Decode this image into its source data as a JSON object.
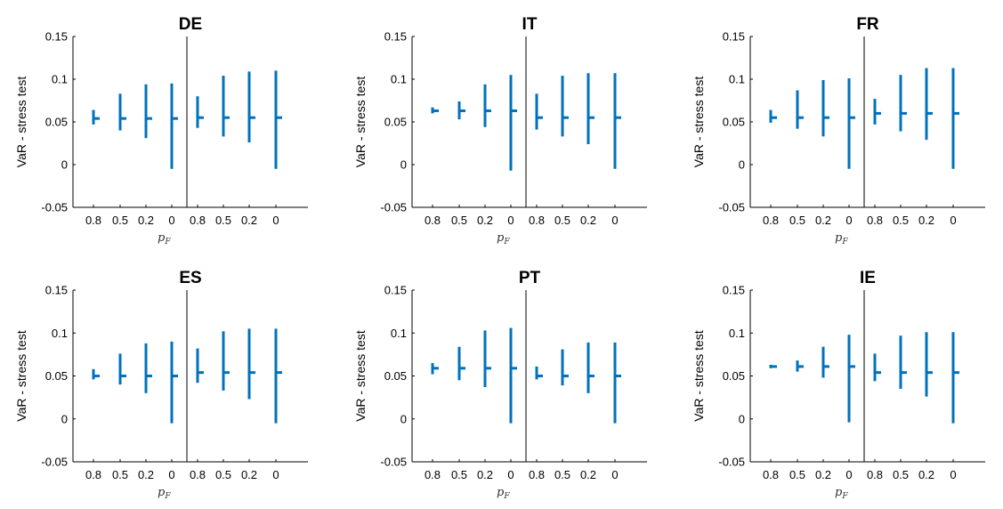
{
  "colors": {
    "series": "#0072BD",
    "axis": "#000000",
    "background": "#ffffff"
  },
  "chart_data": [
    {
      "type": "errorbar",
      "title": "DE",
      "ylabel": "VaR - stress test",
      "xlabel": "p_F",
      "ylim": [
        -0.05,
        0.15
      ],
      "yticks": [
        "0.15",
        "0.1",
        "0.05",
        "0",
        "-0.05"
      ],
      "categories": [
        "0.8",
        "0.5",
        "0.2",
        "0",
        "0.8",
        "0.5",
        "0.2",
        "0"
      ],
      "center": [
        0.054,
        0.054,
        0.054,
        0.054,
        0.055,
        0.055,
        0.055,
        0.055
      ],
      "low": [
        0.047,
        0.04,
        0.031,
        -0.005,
        0.043,
        0.033,
        0.026,
        -0.005
      ],
      "high": [
        0.064,
        0.083,
        0.094,
        0.095,
        0.08,
        0.104,
        0.109,
        0.11
      ]
    },
    {
      "type": "errorbar",
      "title": "IT",
      "ylabel": "VaR - stress test",
      "xlabel": "p_F",
      "ylim": [
        -0.05,
        0.15
      ],
      "yticks": [
        "0.15",
        "0.1",
        "0.05",
        "0",
        "-0.05"
      ],
      "categories": [
        "0.8",
        "0.5",
        "0.2",
        "0",
        "0.8",
        "0.5",
        "0.2",
        "0"
      ],
      "center": [
        0.063,
        0.063,
        0.063,
        0.063,
        0.055,
        0.055,
        0.055,
        0.055
      ],
      "low": [
        0.06,
        0.053,
        0.044,
        -0.007,
        0.041,
        0.033,
        0.024,
        -0.005
      ],
      "high": [
        0.067,
        0.074,
        0.094,
        0.105,
        0.083,
        0.104,
        0.107,
        0.107
      ]
    },
    {
      "type": "errorbar",
      "title": "FR",
      "ylabel": "VaR - stress test",
      "xlabel": "p_F",
      "ylim": [
        -0.05,
        0.15
      ],
      "yticks": [
        "0.15",
        "0.1",
        "0.05",
        "0",
        "-0.05"
      ],
      "categories": [
        "0.8",
        "0.5",
        "0.2",
        "0",
        "0.8",
        "0.5",
        "0.2",
        "0"
      ],
      "center": [
        0.055,
        0.055,
        0.055,
        0.055,
        0.06,
        0.06,
        0.06,
        0.06
      ],
      "low": [
        0.049,
        0.042,
        0.033,
        -0.005,
        0.047,
        0.039,
        0.029,
        -0.005
      ],
      "high": [
        0.064,
        0.087,
        0.099,
        0.101,
        0.077,
        0.105,
        0.113,
        0.113
      ]
    },
    {
      "type": "errorbar",
      "title": "ES",
      "ylabel": "VaR - stress test",
      "xlabel": "p_F",
      "ylim": [
        -0.05,
        0.15
      ],
      "yticks": [
        "0.15",
        "0.1",
        "0.05",
        "0",
        "-0.05"
      ],
      "categories": [
        "0.8",
        "0.5",
        "0.2",
        "0",
        "0.8",
        "0.5",
        "0.2",
        "0"
      ],
      "center": [
        0.05,
        0.05,
        0.05,
        0.05,
        0.054,
        0.054,
        0.054,
        0.054
      ],
      "low": [
        0.046,
        0.04,
        0.03,
        -0.005,
        0.042,
        0.033,
        0.023,
        -0.005
      ],
      "high": [
        0.058,
        0.076,
        0.088,
        0.09,
        0.082,
        0.102,
        0.105,
        0.105
      ]
    },
    {
      "type": "errorbar",
      "title": "PT",
      "ylabel": "VaR - stress test",
      "xlabel": "p_F",
      "ylim": [
        -0.05,
        0.15
      ],
      "yticks": [
        "0.15",
        "0.1",
        "0.05",
        "0",
        "-0.05"
      ],
      "categories": [
        "0.8",
        "0.5",
        "0.2",
        "0",
        "0.8",
        "0.5",
        "0.2",
        "0"
      ],
      "center": [
        0.059,
        0.059,
        0.059,
        0.059,
        0.05,
        0.05,
        0.05,
        0.05
      ],
      "low": [
        0.052,
        0.045,
        0.037,
        -0.005,
        0.046,
        0.039,
        0.03,
        -0.005
      ],
      "high": [
        0.065,
        0.084,
        0.103,
        0.106,
        0.061,
        0.081,
        0.089,
        0.089
      ]
    },
    {
      "type": "errorbar",
      "title": "IE",
      "ylabel": "VaR - stress test",
      "xlabel": "p_F",
      "ylim": [
        -0.05,
        0.15
      ],
      "yticks": [
        "0.15",
        "0.1",
        "0.05",
        "0",
        "-0.05"
      ],
      "categories": [
        "0.8",
        "0.5",
        "0.2",
        "0",
        "0.8",
        "0.5",
        "0.2",
        "0"
      ],
      "center": [
        0.061,
        0.061,
        0.061,
        0.061,
        0.054,
        0.054,
        0.054,
        0.054
      ],
      "low": [
        0.059,
        0.055,
        0.048,
        -0.004,
        0.044,
        0.035,
        0.026,
        -0.005
      ],
      "high": [
        0.063,
        0.068,
        0.084,
        0.098,
        0.076,
        0.097,
        0.101,
        0.101
      ]
    }
  ]
}
